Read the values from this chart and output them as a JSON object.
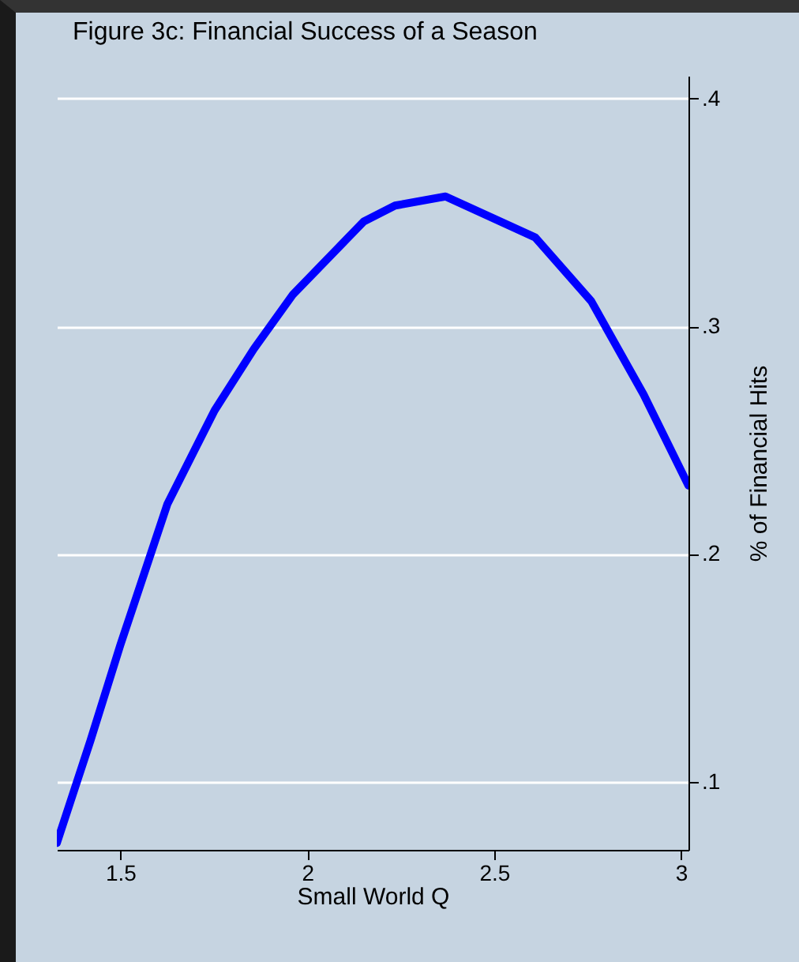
{
  "chart_data": {
    "type": "line",
    "title": "Figure 3c: Financial Success of a Season",
    "xlabel": "Small World Q",
    "ylabel": "% of Financial Hits",
    "x": [
      1.33,
      1.42,
      1.5,
      1.626,
      1.752,
      1.857,
      1.962,
      2.151,
      2.235,
      2.37,
      2.61,
      2.76,
      2.9,
      3.02
    ],
    "series": [
      {
        "color": "#0000ff",
        "values": [
          0.073,
          0.118,
          0.16,
          0.222,
          0.263,
          0.29,
          0.314,
          0.346,
          0.353,
          0.357,
          0.339,
          0.311,
          0.27,
          0.23
        ]
      }
    ],
    "xlim": [
      1.33,
      3.02
    ],
    "xticks": [
      1.5,
      2,
      2.5,
      3
    ],
    "ylim": [
      0.07,
      0.41
    ],
    "yticks": [
      {
        "value": 0.1,
        "label": ".1"
      },
      {
        "value": 0.2,
        "label": ".2"
      },
      {
        "value": 0.3,
        "label": ".3"
      },
      {
        "value": 0.4,
        "label": ".4"
      }
    ],
    "grid": "y",
    "marker": "none",
    "line_style": "solid"
  }
}
